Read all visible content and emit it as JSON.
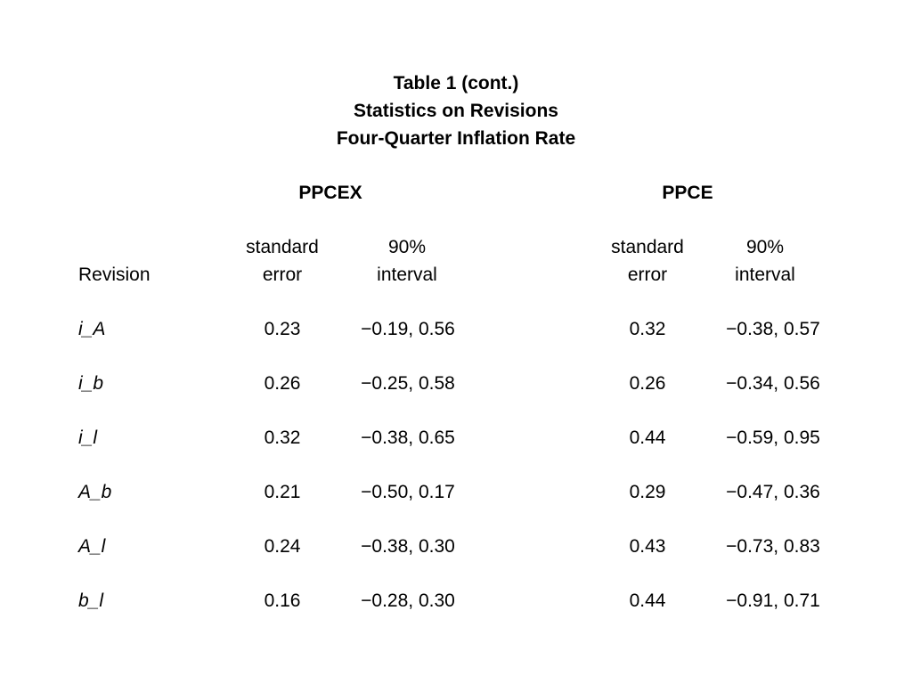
{
  "title": {
    "line1": "Table 1 (cont.)",
    "line2": "Statistics on Revisions",
    "line3": "Four-Quarter Inflation Rate"
  },
  "groups": {
    "ppcex": "PPCEX",
    "ppce": "PPCE"
  },
  "column_headers": {
    "revision": "Revision",
    "se_line1": "standard",
    "se_line2": "error",
    "int_line1": "90%",
    "int_line2": "interval"
  },
  "rows": [
    {
      "label": "i_A",
      "ppcex_se": "0.23",
      "ppcex_int": "−0.19, 0.56",
      "ppce_se": "0.32",
      "ppce_int": "−0.38, 0.57"
    },
    {
      "label": "i_b",
      "ppcex_se": "0.26",
      "ppcex_int": "−0.25, 0.58",
      "ppce_se": "0.26",
      "ppce_int": "−0.34, 0.56"
    },
    {
      "label": "i_l",
      "ppcex_se": "0.32",
      "ppcex_int": "−0.38, 0.65",
      "ppce_se": "0.44",
      "ppce_int": "−0.59, 0.95"
    },
    {
      "label": "A_b",
      "ppcex_se": "0.21",
      "ppcex_int": "−0.50, 0.17",
      "ppce_se": "0.29",
      "ppce_int": "−0.47, 0.36"
    },
    {
      "label": "A_l",
      "ppcex_se": "0.24",
      "ppcex_int": "−0.38, 0.30",
      "ppce_se": "0.43",
      "ppce_int": "−0.73, 0.83"
    },
    {
      "label": "b_l",
      "ppcex_se": "0.16",
      "ppcex_int": "−0.28, 0.30",
      "ppce_se": "0.44",
      "ppce_int": "−0.91, 0.71"
    }
  ]
}
